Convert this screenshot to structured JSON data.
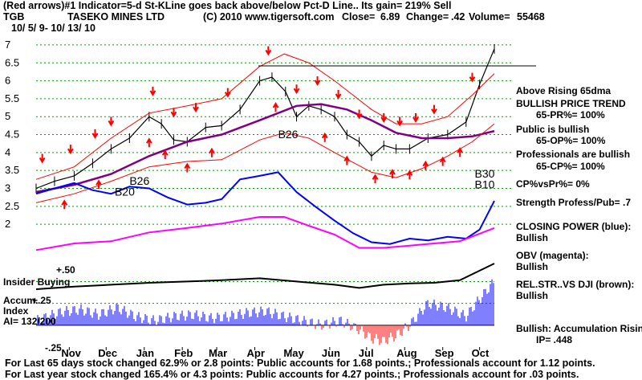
{
  "header": {
    "line1": "(Red arrows)#1 Indicator=5-d St-KLine goes back above/below Pct-D Line.. Its gain= 219% Sell",
    "symbol": "TGB",
    "company": "TASEKO MINES LTD",
    "copyright": "(C) 2010 www.tigersoft.com",
    "close_label": "Close=",
    "close_value": "6.89",
    "change_label": "Change=",
    "change_value": ".42",
    "volume_label": "Volume=",
    "volume_value": "55468",
    "date_range": "10/ 5/ 9- 10/ 13/ 10"
  },
  "left_labels": {
    "insider_buying": "Insider Buying",
    "plus50": "+.50",
    "accum_line1": "Accum.",
    "accum_line2": "Index",
    "plus25": "+.25",
    "ai": "AI= 132/200",
    "minus25": "-.25"
  },
  "signals": [
    {
      "text": "B26",
      "x": "2009-12-20",
      "y": 3.1
    },
    {
      "text": "B20",
      "x": "2009-12-08",
      "y": 2.8
    },
    {
      "text": "B26",
      "x": "2010-04-20",
      "y": 4.4
    },
    {
      "text": "B30",
      "x": "2010-09-27",
      "y": 3.3
    },
    {
      "text": "B10",
      "x": "2010-09-27",
      "y": 3.0
    }
  ],
  "right_panel": [
    {
      "text": "Above Rising 65dma"
    },
    {
      "text": "BULLISH PRICE TREND"
    },
    {
      "text": "65-PR%= 100%",
      "indent": true
    },
    {
      "text": "Public is bullish"
    },
    {
      "text": "65-OP%= 100%",
      "indent": true
    },
    {
      "text": "Professionals are bullish"
    },
    {
      "text": "65-CP%= 100%",
      "indent": true
    },
    {
      "text": "CP%vsPr%= 0%"
    },
    {
      "text": "Strength Profess/Pub= .7"
    },
    {
      "text": "CLOSING POWER (blue):"
    },
    {
      "text": "Bullish"
    },
    {
      "text": "OBV (magenta):"
    },
    {
      "text": "Bullish"
    },
    {
      "text": "REL.STR..VS DJI (brown):"
    },
    {
      "text": "Bullish"
    },
    {
      "text": "Bullish: Accumulation Rising"
    },
    {
      "text": "IP= .448",
      "indent": true
    }
  ],
  "footer": {
    "line1": "For Last 65 days stock changed 62.9% or 2.8 points: Public accounts for 1.68 points.; Professionals account for 1.12 points.",
    "line2": "For Last year stock changed 165.4% or 4.3 points: Public accounts for 4.27 points.; Professionals account for .03 points."
  },
  "colors": {
    "price": "#000000",
    "ma_65": "#800080",
    "bands": "#ff0000",
    "closing_power": "#0000ff",
    "obv": "#ff00ff",
    "rel_strength": "#8b4513",
    "accum_bars_positive": "#0000ff",
    "accum_bars_negative": "#ff0000",
    "gridline": "#00a000",
    "signal_arrow": "#ff0000"
  },
  "chart_data": {
    "type": "line",
    "title": "TASEKO MINES LTD",
    "x_start": "2009-10-05",
    "x_end": "2010-10-13",
    "month_ticks": [
      {
        "label": "Nov",
        "date": "2009-11-01"
      },
      {
        "label": "Dec",
        "date": "2009-12-01"
      },
      {
        "label": "Jan",
        "date": "2010-01-01"
      },
      {
        "label": "Feb",
        "date": "2010-02-01"
      },
      {
        "label": "Mar",
        "date": "2010-03-01"
      },
      {
        "label": "Apr",
        "date": "2010-04-01"
      },
      {
        "label": "May",
        "date": "2010-05-01"
      },
      {
        "label": "Jun",
        "date": "2010-06-01"
      },
      {
        "label": "Jul",
        "date": "2010-07-01"
      },
      {
        "label": "Aug",
        "date": "2010-08-01"
      },
      {
        "label": "Sep",
        "date": "2010-09-01"
      },
      {
        "label": "Oct",
        "date": "2010-10-01"
      }
    ],
    "y_ticks": [
      "7",
      "6.5",
      "6",
      "5.5",
      "5",
      "4.5",
      "4",
      "3.5",
      "3",
      "2.5",
      "2"
    ],
    "ylim": [
      1.6,
      7.2
    ],
    "grid": true,
    "series": [
      {
        "key": "price",
        "x": [
          "2009-10-05",
          "2009-10-20",
          "2009-11-05",
          "2009-11-20",
          "2009-12-05",
          "2009-12-20",
          "2010-01-05",
          "2010-01-15",
          "2010-01-25",
          "2010-02-05",
          "2010-02-20",
          "2010-03-05",
          "2010-03-20",
          "2010-04-05",
          "2010-04-15",
          "2010-04-26",
          "2010-05-05",
          "2010-05-15",
          "2010-05-25",
          "2010-06-05",
          "2010-06-15",
          "2010-06-25",
          "2010-07-05",
          "2010-07-15",
          "2010-07-25",
          "2010-08-05",
          "2010-08-20",
          "2010-09-05",
          "2010-09-20",
          "2010-10-01",
          "2010-10-13"
        ],
        "y": [
          3.0,
          3.2,
          3.35,
          3.7,
          4.1,
          4.4,
          5.0,
          4.8,
          4.35,
          4.3,
          4.7,
          4.75,
          5.2,
          6.0,
          6.1,
          5.7,
          5.0,
          5.3,
          5.2,
          5.0,
          4.5,
          4.3,
          3.9,
          4.2,
          4.1,
          4.1,
          4.4,
          4.5,
          4.85,
          5.9,
          6.89
        ]
      },
      {
        "key": "ma_65",
        "x": [
          "2009-10-05",
          "2009-11-05",
          "2009-12-05",
          "2010-01-05",
          "2010-02-05",
          "2010-03-05",
          "2010-04-05",
          "2010-05-05",
          "2010-05-25",
          "2010-06-15",
          "2010-07-05",
          "2010-07-25",
          "2010-08-15",
          "2010-09-05",
          "2010-09-25",
          "2010-10-13"
        ],
        "y": [
          2.9,
          3.1,
          3.4,
          3.9,
          4.3,
          4.5,
          4.9,
          5.3,
          5.35,
          5.2,
          4.9,
          4.55,
          4.4,
          4.4,
          4.45,
          4.6
        ]
      },
      {
        "key": "upper_band",
        "x": [
          "2009-10-05",
          "2009-11-05",
          "2009-12-05",
          "2010-01-05",
          "2010-02-05",
          "2010-03-05",
          "2010-04-05",
          "2010-04-25",
          "2010-05-15",
          "2010-06-05",
          "2010-07-05",
          "2010-07-25",
          "2010-08-15",
          "2010-09-05",
          "2010-09-25",
          "2010-10-13"
        ],
        "y": [
          3.25,
          3.6,
          4.4,
          5.1,
          5.3,
          5.5,
          6.4,
          6.75,
          6.5,
          6.0,
          5.2,
          4.8,
          4.8,
          5.0,
          5.6,
          6.2
        ]
      },
      {
        "key": "lower_band",
        "x": [
          "2009-10-05",
          "2009-11-05",
          "2009-12-05",
          "2010-01-05",
          "2010-02-05",
          "2010-03-05",
          "2010-04-05",
          "2010-04-25",
          "2010-05-15",
          "2010-06-05",
          "2010-07-05",
          "2010-07-25",
          "2010-08-15",
          "2010-09-05",
          "2010-09-25",
          "2010-10-13"
        ],
        "y": [
          2.6,
          2.85,
          3.2,
          3.6,
          3.75,
          3.8,
          4.35,
          4.55,
          4.4,
          4.0,
          3.45,
          3.3,
          3.55,
          3.9,
          4.3,
          4.8
        ]
      },
      {
        "key": "closing_power",
        "x": [
          "2009-10-05",
          "2009-10-20",
          "2009-11-05",
          "2009-11-20",
          "2009-12-05",
          "2009-12-20",
          "2010-01-05",
          "2010-01-20",
          "2010-02-05",
          "2010-02-20",
          "2010-03-05",
          "2010-03-20",
          "2010-04-05",
          "2010-04-20",
          "2010-05-05",
          "2010-05-20",
          "2010-06-05",
          "2010-06-20",
          "2010-07-05",
          "2010-07-20",
          "2010-08-05",
          "2010-08-20",
          "2010-09-05",
          "2010-09-20",
          "2010-10-01",
          "2010-10-13"
        ],
        "y": [
          2.85,
          3.0,
          3.15,
          2.95,
          2.85,
          3.05,
          3.0,
          2.75,
          2.55,
          2.6,
          2.7,
          3.25,
          3.35,
          3.45,
          2.9,
          2.5,
          2.1,
          1.75,
          1.5,
          1.45,
          1.6,
          1.55,
          1.65,
          1.6,
          1.85,
          2.65
        ]
      },
      {
        "key": "obv",
        "x": [
          "2009-10-05",
          "2009-11-05",
          "2009-12-05",
          "2010-01-05",
          "2010-02-05",
          "2010-03-05",
          "2010-04-05",
          "2010-04-25",
          "2010-05-15",
          "2010-06-05",
          "2010-06-25",
          "2010-07-15",
          "2010-08-05",
          "2010-08-25",
          "2010-09-15",
          "2010-10-13"
        ],
        "y": [
          1.25,
          1.4,
          1.45,
          1.65,
          1.75,
          1.85,
          2.0,
          2.0,
          1.8,
          1.6,
          1.3,
          1.3,
          1.35,
          1.4,
          1.45,
          1.75
        ]
      },
      {
        "key": "rel_strength",
        "x": [
          "2009-10-05",
          "2009-11-05",
          "2009-12-05",
          "2010-01-05",
          "2010-02-05",
          "2010-03-05",
          "2010-04-05",
          "2010-05-05",
          "2010-06-05",
          "2010-06-25",
          "2010-07-15",
          "2010-08-05",
          "2010-08-25",
          "2010-09-15",
          "2010-10-13"
        ],
        "y": [
          0.78,
          0.82,
          0.85,
          0.88,
          0.9,
          0.92,
          0.95,
          0.9,
          0.85,
          0.8,
          0.85,
          0.87,
          0.88,
          0.92,
          1.18
        ]
      }
    ],
    "accum_index": {
      "ylim": [
        -0.25,
        0.55
      ],
      "ticks": [
        "+.50",
        "+.25",
        "-.25"
      ],
      "x": [
        "2009-10-05",
        "2009-10-25",
        "2009-11-10",
        "2009-11-25",
        "2009-12-10",
        "2009-12-25",
        "2010-01-10",
        "2010-01-25",
        "2010-02-10",
        "2010-02-25",
        "2010-03-10",
        "2010-03-25",
        "2010-04-10",
        "2010-04-25",
        "2010-05-10",
        "2010-05-25",
        "2010-06-10",
        "2010-06-25",
        "2010-07-05",
        "2010-07-15",
        "2010-07-25",
        "2010-08-05",
        "2010-08-20",
        "2010-09-05",
        "2010-09-20",
        "2010-10-01",
        "2010-10-13"
      ],
      "y": [
        0.05,
        0.15,
        0.18,
        0.12,
        0.2,
        0.1,
        0.05,
        0.1,
        0.12,
        0.08,
        0.1,
        0.14,
        0.16,
        0.1,
        0.05,
        0.0,
        0.05,
        -0.05,
        -0.15,
        -0.18,
        -0.12,
        0.0,
        0.25,
        0.2,
        0.1,
        0.3,
        0.5
      ]
    },
    "signals_up_dates": [
      "2009-10-28",
      "2009-11-25",
      "2010-01-05",
      "2010-01-18",
      "2010-02-05",
      "2010-02-25",
      "2010-04-18",
      "2010-05-28",
      "2010-06-15",
      "2010-07-08",
      "2010-07-22",
      "2010-08-05",
      "2010-08-18",
      "2010-09-01",
      "2010-09-15"
    ],
    "signals_down_dates": [
      "2009-10-10",
      "2009-11-02",
      "2009-11-22",
      "2009-12-05",
      "2010-01-08",
      "2010-01-25",
      "2010-02-12",
      "2010-03-10",
      "2010-04-12",
      "2010-05-05",
      "2010-05-22",
      "2010-06-08",
      "2010-06-25",
      "2010-07-15",
      "2010-07-28",
      "2010-08-10",
      "2010-08-25",
      "2010-09-25"
    ]
  }
}
